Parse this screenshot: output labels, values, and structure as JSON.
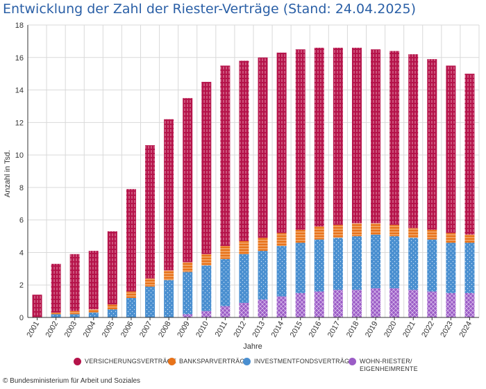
{
  "title": "Entwicklung der Zahl der Riester-Verträge (Stand: 24.04.2025)",
  "copyright": "© Bundesministerium für Arbeit und Soziales",
  "colors": {
    "versicherung": "#b5134a",
    "bankspar": "#e8731a",
    "investment": "#4a8fd0",
    "wohn": "#9b5cc6",
    "grid": "#d9d9d9",
    "axis": "#333333"
  },
  "chart_data": {
    "type": "bar",
    "stacked": true,
    "title": "Entwicklung der Zahl der Riester-Verträge (Stand: 24.04.2025)",
    "xlabel": "Jahre",
    "ylabel": "Anzahl in Tsd.",
    "ylim": [
      0,
      18
    ],
    "yticks": [
      "0",
      "2",
      "4",
      "6",
      "8",
      "10",
      "12",
      "14",
      "16",
      "18"
    ],
    "grid": true,
    "legend_position": "bottom",
    "categories": [
      "2001",
      "2002",
      "2003",
      "2004",
      "2005",
      "2006",
      "2007",
      "2008",
      "2009",
      "2010",
      "2011",
      "2012",
      "2013",
      "2014",
      "2015",
      "2016",
      "2017",
      "2018",
      "2019",
      "2020",
      "2021",
      "2022",
      "2023",
      "2024"
    ],
    "series": [
      {
        "key": "wohn",
        "name": "WOHN-RIESTER/ EIGENHEIMRENTE",
        "legend_lines": [
          "WOHN-RIESTER/",
          "EIGENHEIMRENTE"
        ],
        "values": [
          0,
          0,
          0,
          0,
          0,
          0,
          0,
          0,
          0.2,
          0.4,
          0.7,
          0.9,
          1.1,
          1.3,
          1.5,
          1.6,
          1.7,
          1.7,
          1.8,
          1.8,
          1.7,
          1.6,
          1.5,
          1.5
        ]
      },
      {
        "key": "investment",
        "name": "INVESTMENTFONDSVERTRÄGE",
        "legend_lines": [
          "INVESTMENTFONDSVERTRÄGE"
        ],
        "values": [
          0,
          0.2,
          0.2,
          0.3,
          0.5,
          1.2,
          1.9,
          2.3,
          2.6,
          2.8,
          2.9,
          3.0,
          3.0,
          3.1,
          3.1,
          3.2,
          3.2,
          3.3,
          3.3,
          3.2,
          3.2,
          3.2,
          3.1,
          3.1
        ]
      },
      {
        "key": "bankspar",
        "name": "BANKSPARVERTRÄGE",
        "legend_lines": [
          "BANKSPARVERTRÄGE"
        ],
        "values": [
          0,
          0.1,
          0.2,
          0.2,
          0.3,
          0.4,
          0.5,
          0.6,
          0.6,
          0.7,
          0.8,
          0.8,
          0.8,
          0.8,
          0.8,
          0.8,
          0.8,
          0.8,
          0.7,
          0.7,
          0.6,
          0.6,
          0.6,
          0.5
        ]
      },
      {
        "key": "versicherung",
        "name": "VERSICHERUNGSVERTRÄGE",
        "legend_lines": [
          "VERSICHERUNGSVERTRÄGE"
        ],
        "values": [
          1.4,
          3.0,
          3.5,
          3.6,
          4.5,
          6.3,
          8.2,
          9.3,
          10.1,
          10.6,
          11.1,
          11.1,
          11.1,
          11.1,
          11.1,
          11.0,
          10.9,
          10.8,
          10.7,
          10.7,
          10.7,
          10.5,
          10.3,
          9.9
        ]
      }
    ]
  }
}
